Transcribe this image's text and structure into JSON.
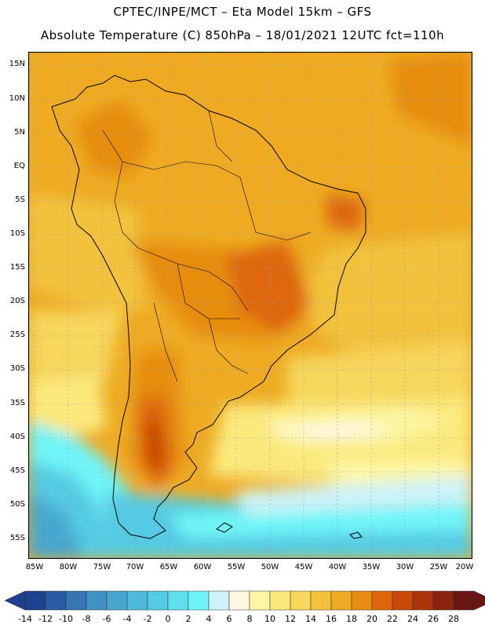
{
  "header": {
    "line1": "CPTEC/INPE/MCT –  Eta Model 15km – GFS",
    "line2": "Absolute Temperature (C) 850hPa – 18/01/2021 12UTC fct=110h"
  },
  "map": {
    "region": "South America",
    "variable": "Absolute Temperature (C) 850hPa",
    "lat_labels": [
      "15N",
      "10N",
      "5N",
      "EQ",
      "5S",
      "10S",
      "15S",
      "20S",
      "25S",
      "30S",
      "35S",
      "40S",
      "45S",
      "50S",
      "55S"
    ],
    "lon_labels": [
      "85W",
      "80W",
      "75W",
      "70W",
      "65W",
      "60W",
      "55W",
      "50W",
      "45W",
      "40W",
      "35W",
      "30W",
      "25W",
      "20W"
    ],
    "lat_range": [
      16,
      -58
    ],
    "lon_range": [
      -86,
      -20
    ]
  },
  "colorbar": {
    "labels": [
      "-14",
      "-12",
      "-10",
      "-8",
      "-6",
      "-4",
      "-2",
      "0",
      "2",
      "4",
      "6",
      "8",
      "10",
      "12",
      "14",
      "16",
      "18",
      "20",
      "22",
      "24",
      "26",
      "28"
    ],
    "colors": [
      "#1f3f8f",
      "#2a5aa3",
      "#3576b3",
      "#3f90c3",
      "#47a7cf",
      "#4fb9d9",
      "#55cbe3",
      "#5fdfec",
      "#6ff5f8",
      "#cdf3f8",
      "#fdf8e1",
      "#fdf6a3",
      "#fbe97c",
      "#f7d65b",
      "#f2c23e",
      "#eeab22",
      "#e78d0f",
      "#dd6708",
      "#c84a06",
      "#a8360a",
      "#8a240f",
      "#6b1515"
    ]
  }
}
